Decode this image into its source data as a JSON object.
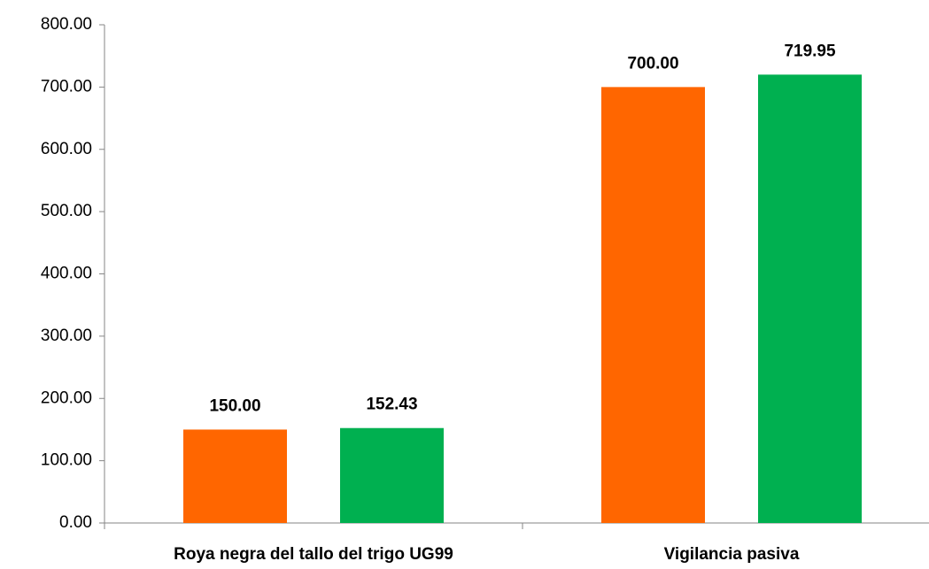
{
  "chart_data": {
    "type": "bar",
    "categories": [
      "Roya negra del tallo del trigo UG99",
      "Vigilancia pasiva"
    ],
    "series": [
      {
        "color": "#ff6600",
        "values": [
          150,
          700
        ],
        "value_labels": [
          "150.00",
          "700.00"
        ]
      },
      {
        "color": "#00b050",
        "values": [
          152.43,
          719.95
        ],
        "value_labels": [
          "152.43",
          "719.95"
        ]
      }
    ],
    "ylim": [
      0,
      800
    ],
    "yticks": [
      {
        "value": 0,
        "label": "0.00"
      },
      {
        "value": 100,
        "label": "100.00"
      },
      {
        "value": 200,
        "label": "200.00"
      },
      {
        "value": 300,
        "label": "300.00"
      },
      {
        "value": 400,
        "label": "400.00"
      },
      {
        "value": 500,
        "label": "500.00"
      },
      {
        "value": 600,
        "label": "600.00"
      },
      {
        "value": 700,
        "label": "700.00"
      },
      {
        "value": 800,
        "label": "800.00"
      }
    ],
    "grid": false
  }
}
